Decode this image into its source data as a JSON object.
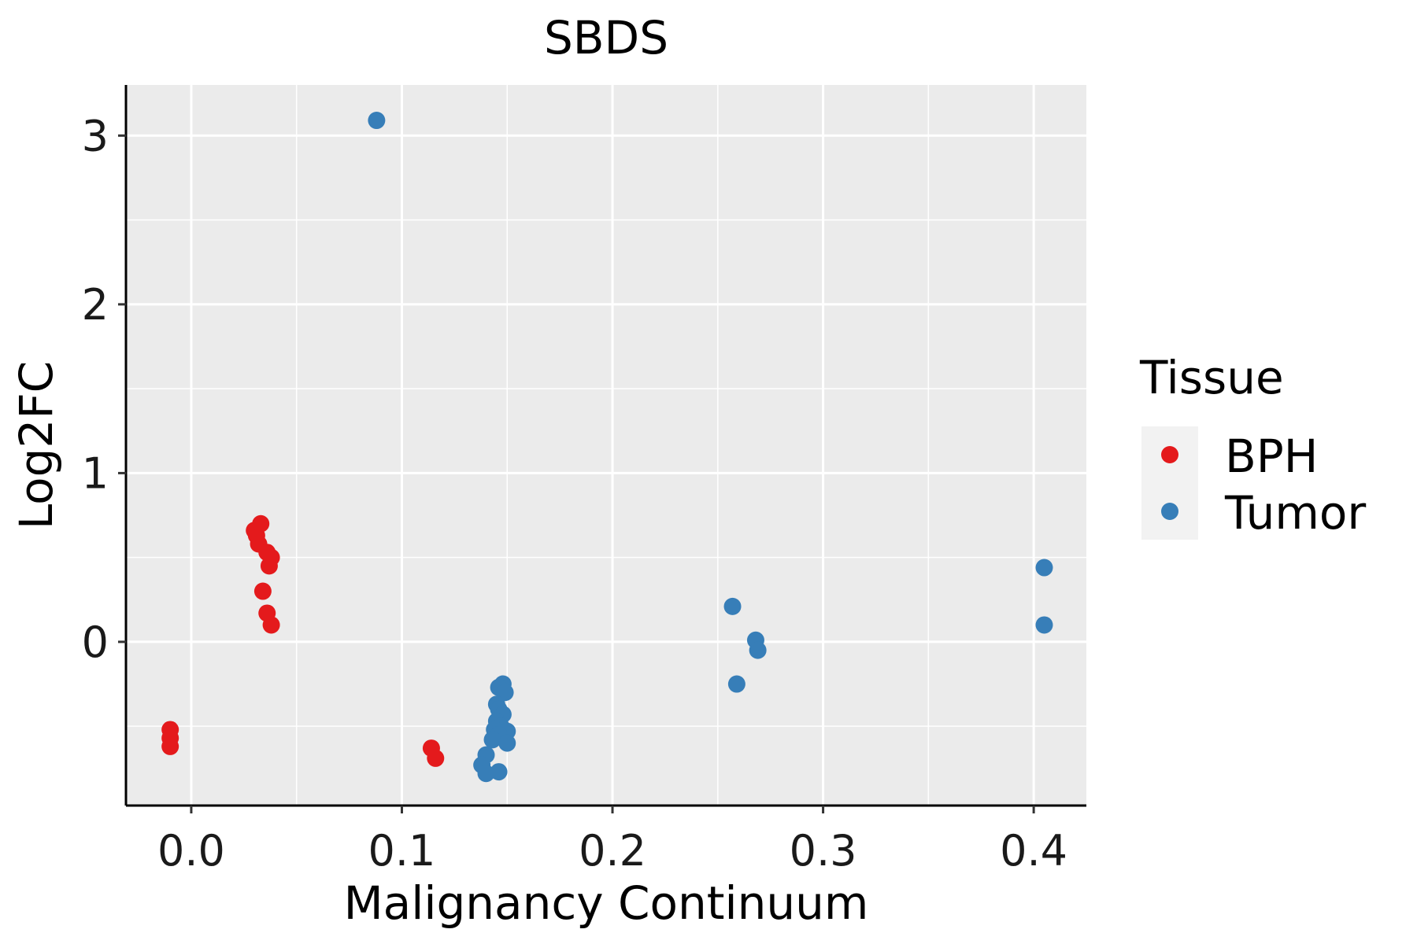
{
  "chart_data": {
    "type": "scatter",
    "title": "SBDS",
    "xlabel": "Malignancy Continuum",
    "ylabel": "Log2FC",
    "xlim": [
      -0.031,
      0.425
    ],
    "ylim": [
      -0.97,
      3.3
    ],
    "x_ticks": [
      0.0,
      0.1,
      0.2,
      0.3,
      0.4
    ],
    "x_tick_labels": [
      "0.0",
      "0.1",
      "0.2",
      "0.3",
      "0.4"
    ],
    "y_ticks": [
      0,
      1,
      2,
      3
    ],
    "y_tick_labels": [
      "0",
      "1",
      "2",
      "3"
    ],
    "x_minor": [
      0.05,
      0.15,
      0.25,
      0.35
    ],
    "y_minor": [
      -0.5,
      0.5,
      1.5,
      2.5
    ],
    "grid": true,
    "legend": {
      "title": "Tissue",
      "position": "right"
    },
    "series": [
      {
        "name": "BPH",
        "color": "#E41A1C",
        "points": [
          [
            -0.01,
            -0.52
          ],
          [
            -0.01,
            -0.57
          ],
          [
            -0.01,
            -0.62
          ],
          [
            0.03,
            0.66
          ],
          [
            0.031,
            0.63
          ],
          [
            0.032,
            0.58
          ],
          [
            0.033,
            0.7
          ],
          [
            0.036,
            0.53
          ],
          [
            0.038,
            0.5
          ],
          [
            0.037,
            0.45
          ],
          [
            0.034,
            0.3
          ],
          [
            0.036,
            0.17
          ],
          [
            0.038,
            0.1
          ],
          [
            0.114,
            -0.63
          ],
          [
            0.116,
            -0.69
          ]
        ]
      },
      {
        "name": "Tumor",
        "color": "#377EB8",
        "points": [
          [
            0.088,
            3.09
          ],
          [
            0.148,
            -0.25
          ],
          [
            0.146,
            -0.27
          ],
          [
            0.149,
            -0.3
          ],
          [
            0.145,
            -0.37
          ],
          [
            0.146,
            -0.4
          ],
          [
            0.148,
            -0.43
          ],
          [
            0.145,
            -0.47
          ],
          [
            0.147,
            -0.5
          ],
          [
            0.144,
            -0.52
          ],
          [
            0.15,
            -0.53
          ],
          [
            0.146,
            -0.55
          ],
          [
            0.143,
            -0.58
          ],
          [
            0.15,
            -0.6
          ],
          [
            0.14,
            -0.67
          ],
          [
            0.138,
            -0.73
          ],
          [
            0.14,
            -0.78
          ],
          [
            0.146,
            -0.77
          ],
          [
            0.257,
            0.21
          ],
          [
            0.268,
            0.01
          ],
          [
            0.269,
            -0.05
          ],
          [
            0.259,
            -0.25
          ],
          [
            0.405,
            0.44
          ],
          [
            0.405,
            0.1
          ]
        ]
      }
    ]
  }
}
